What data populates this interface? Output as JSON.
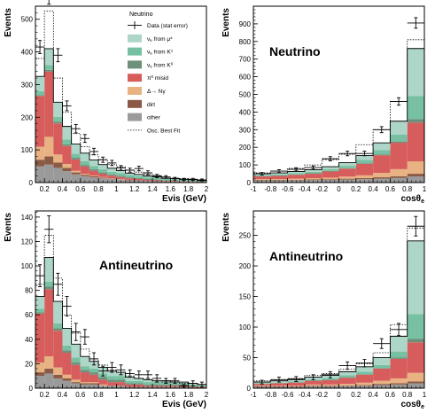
{
  "colors": {
    "nue_mu": "#aed6c8",
    "nue_k": "#77c0a2",
    "nue_k0": "#6e8f7a",
    "pi0": "#d75d5d",
    "delta": "#e8b282",
    "dirt": "#8a5a45",
    "other": "#9a9a9a"
  },
  "legend": {
    "title": "Neutrino",
    "entries": [
      {
        "key": "data",
        "label": "Data (stat error)"
      },
      {
        "key": "nue_mu",
        "label": "ν_e from μ^±"
      },
      {
        "key": "nue_k",
        "label": "ν_e from K^±"
      },
      {
        "key": "nue_k0",
        "label": "ν_e from K^0"
      },
      {
        "key": "pi0",
        "label": "π^0 misid"
      },
      {
        "key": "delta",
        "label": "Δ→ Nγ"
      },
      {
        "key": "dirt",
        "label": "dirt"
      },
      {
        "key": "other",
        "label": "other"
      },
      {
        "key": "fit",
        "label": "Osc. Best Fit"
      }
    ]
  },
  "chart_data": [
    {
      "type": "bar",
      "id": "nu_evis",
      "title": "",
      "label": "",
      "xlabel": "Evis (GeV)",
      "ylabel": "Events",
      "xlim": [
        0.1,
        2.0
      ],
      "ylim": [
        0,
        540
      ],
      "xticks": [
        0.2,
        0.4,
        0.6,
        0.8,
        1.0,
        1.2,
        1.4,
        1.6,
        1.8,
        2.0
      ],
      "xticklabels": [
        "0.2",
        "0.4",
        "0.6",
        "0.8",
        "1",
        "1.2",
        "1.4",
        "1.6",
        "1.8",
        "2"
      ],
      "yticks": [
        0,
        100,
        200,
        300,
        400,
        500
      ],
      "bin_edges": [
        0.1,
        0.2,
        0.3,
        0.4,
        0.5,
        0.6,
        0.7,
        0.8,
        0.9,
        1.0,
        1.1,
        1.2,
        1.3,
        1.4,
        1.5,
        1.6,
        1.7,
        1.8,
        1.9,
        2.0
      ],
      "stack": {
        "other": [
          50,
          55,
          45,
          35,
          25,
          20,
          16,
          13,
          11,
          9,
          7,
          6,
          5,
          4,
          3,
          3,
          2,
          2,
          1
        ],
        "dirt": [
          20,
          25,
          16,
          10,
          6,
          4,
          3,
          2,
          1,
          1,
          1,
          1,
          0,
          0,
          0,
          0,
          0,
          0,
          0
        ],
        "delta": [
          40,
          60,
          25,
          12,
          5,
          3,
          2,
          2,
          1,
          1,
          0,
          0,
          0,
          0,
          0,
          0,
          0,
          0,
          0
        ],
        "pi0": [
          155,
          200,
          95,
          55,
          35,
          22,
          15,
          10,
          8,
          6,
          5,
          4,
          3,
          3,
          2,
          2,
          1,
          1,
          1
        ],
        "nue_k0": [
          3,
          5,
          5,
          5,
          5,
          5,
          5,
          4,
          4,
          4,
          3,
          3,
          3,
          3,
          2,
          2,
          2,
          2,
          1
        ],
        "nue_k": [
          12,
          15,
          15,
          15,
          12,
          12,
          10,
          10,
          8,
          8,
          7,
          6,
          5,
          5,
          4,
          3,
          3,
          3,
          2
        ],
        "nue_mu": [
          45,
          50,
          45,
          40,
          30,
          24,
          18,
          14,
          11,
          8,
          6,
          5,
          4,
          3,
          2,
          2,
          2,
          1,
          1
        ]
      },
      "fit_total": [
        380,
        525,
        320,
        215,
        150,
        110,
        85,
        70,
        55,
        48,
        38,
        32,
        26,
        22,
        16,
        14,
        12,
        10,
        8
      ],
      "data": {
        "x": [
          0.15,
          0.25,
          0.35,
          0.45,
          0.55,
          0.65,
          0.75,
          0.85,
          0.95,
          1.05,
          1.15,
          1.25,
          1.35,
          1.45,
          1.55,
          1.65,
          1.75,
          1.85,
          1.95
        ],
        "y": [
          415,
          570,
          390,
          235,
          165,
          135,
          95,
          70,
          60,
          45,
          38,
          43,
          30,
          20,
          17,
          12,
          10,
          10,
          8
        ],
        "err": [
          20,
          24,
          20,
          15,
          13,
          12,
          10,
          8,
          8,
          7,
          6,
          7,
          6,
          5,
          4,
          4,
          3,
          3,
          3
        ]
      }
    },
    {
      "type": "bar",
      "id": "nu_cos",
      "title": "",
      "label": "Neutrino",
      "xlabel": "cosθ_e",
      "ylabel": "Events",
      "xlim": [
        -1,
        1
      ],
      "ylim": [
        0,
        1000
      ],
      "xticks": [
        -1,
        -0.8,
        -0.6,
        -0.4,
        -0.2,
        0,
        0.2,
        0.4,
        0.6,
        0.8,
        1
      ],
      "xticklabels": [
        "-1",
        "-0.8",
        "-0.6",
        "-0.4",
        "-0.2",
        "0",
        "0.2",
        "0.4",
        "0.6",
        "0.8",
        "1"
      ],
      "yticks": [
        0,
        100,
        200,
        300,
        400,
        500,
        600,
        700,
        800,
        900
      ],
      "bin_edges": [
        -1,
        -0.8,
        -0.6,
        -0.4,
        -0.2,
        0,
        0.2,
        0.4,
        0.6,
        0.8,
        1
      ],
      "stack": {
        "other": [
          12,
          12,
          13,
          14,
          15,
          17,
          19,
          22,
          26,
          35
        ],
        "dirt": [
          3,
          3,
          3,
          4,
          4,
          5,
          6,
          8,
          10,
          15
        ],
        "delta": [
          5,
          5,
          6,
          7,
          9,
          12,
          16,
          25,
          40,
          70
        ],
        "pi0": [
          15,
          18,
          22,
          25,
          35,
          45,
          65,
          100,
          150,
          220
        ],
        "nue_k0": [
          2,
          2,
          2,
          3,
          3,
          3,
          4,
          5,
          7,
          20
        ],
        "nue_k": [
          5,
          6,
          7,
          8,
          10,
          13,
          18,
          25,
          40,
          130
        ],
        "nue_mu": [
          8,
          9,
          10,
          12,
          14,
          18,
          25,
          40,
          75,
          270
        ]
      },
      "fit_total": [
        55,
        65,
        80,
        100,
        130,
        160,
        215,
        300,
        460,
        810
      ],
      "data": {
        "x": [
          -0.9,
          -0.7,
          -0.5,
          -0.3,
          -0.1,
          0.1,
          0.3,
          0.5,
          0.7,
          0.9
        ],
        "y": [
          50,
          65,
          75,
          85,
          135,
          165,
          165,
          300,
          460,
          905
        ],
        "err": [
          7,
          8,
          9,
          9,
          12,
          13,
          13,
          17,
          21,
          30
        ]
      }
    },
    {
      "type": "bar",
      "id": "nubar_evis",
      "title": "",
      "label": "Antineutrino",
      "xlabel": "Evis (GeV)",
      "ylabel": "Events",
      "xlim": [
        0.1,
        2.0
      ],
      "ylim": [
        0,
        145
      ],
      "xticks": [
        0.2,
        0.4,
        0.6,
        0.8,
        1.0,
        1.2,
        1.4,
        1.6,
        1.8,
        2.0
      ],
      "xticklabels": [
        "0.2",
        "0.4",
        "0.6",
        "0.8",
        "1",
        "1.2",
        "1.4",
        "1.6",
        "1.8",
        "2"
      ],
      "yticks": [
        0,
        20,
        40,
        60,
        80,
        100,
        120,
        140
      ],
      "bin_edges": [
        0.1,
        0.2,
        0.3,
        0.4,
        0.5,
        0.6,
        0.7,
        0.8,
        0.9,
        1.0,
        1.1,
        1.2,
        1.3,
        1.4,
        1.5,
        1.6,
        1.7,
        1.8,
        1.9,
        2.0
      ],
      "stack": {
        "other": [
          10,
          12,
          8,
          6,
          4,
          3,
          3,
          2,
          2,
          2,
          1,
          1,
          1,
          1,
          1,
          1,
          1,
          0,
          0
        ],
        "dirt": [
          3,
          4,
          3,
          2,
          1,
          1,
          1,
          0,
          0,
          0,
          0,
          0,
          0,
          0,
          0,
          0,
          0,
          0,
          0
        ],
        "delta": [
          8,
          10,
          6,
          3,
          2,
          1,
          1,
          1,
          0,
          0,
          0,
          0,
          0,
          0,
          0,
          0,
          0,
          0,
          0
        ],
        "pi0": [
          40,
          55,
          30,
          18,
          12,
          8,
          6,
          4,
          3,
          3,
          2,
          2,
          1,
          1,
          1,
          1,
          1,
          1,
          1
        ],
        "nue_k0": [
          1,
          2,
          2,
          2,
          2,
          2,
          2,
          2,
          2,
          2,
          1,
          1,
          1,
          1,
          1,
          1,
          1,
          1,
          0
        ],
        "nue_k": [
          3,
          4,
          4,
          4,
          4,
          3,
          3,
          3,
          3,
          3,
          2,
          2,
          2,
          2,
          2,
          1,
          1,
          1,
          1
        ],
        "nue_mu": [
          10,
          20,
          18,
          14,
          11,
          8,
          6,
          5,
          4,
          3,
          3,
          2,
          2,
          1,
          1,
          1,
          1,
          1,
          1
        ]
      },
      "fit_total": [
        85,
        125,
        90,
        60,
        45,
        32,
        24,
        19,
        15,
        13,
        10,
        8,
        7,
        6,
        5,
        5,
        4,
        4,
        3
      ],
      "data": {
        "x": [
          0.15,
          0.25,
          0.35,
          0.45,
          0.55,
          0.65,
          0.75,
          0.85,
          0.95,
          1.05,
          1.15,
          1.25,
          1.35,
          1.45,
          1.55,
          1.65,
          1.75,
          1.85,
          1.95
        ],
        "y": [
          92,
          130,
          85,
          67,
          46,
          42,
          24,
          14,
          17,
          15,
          12,
          11,
          11,
          8,
          6,
          6,
          2,
          4,
          3
        ],
        "err": [
          9,
          11,
          9,
          8,
          7,
          6,
          5,
          4,
          4,
          4,
          3,
          3,
          3,
          3,
          2,
          2,
          1,
          2,
          2
        ]
      }
    },
    {
      "type": "bar",
      "id": "nubar_cos",
      "title": "",
      "label": "Antineutrino",
      "xlabel": "cosθ_e",
      "ylabel": "Events",
      "xlim": [
        -1,
        1
      ],
      "ylim": [
        0,
        290
      ],
      "xticks": [
        -1,
        -0.8,
        -0.6,
        -0.4,
        -0.2,
        0,
        0.2,
        0.4,
        0.6,
        0.8,
        1
      ],
      "xticklabels": [
        "-1",
        "-0.8",
        "-0.6",
        "-0.4",
        "-0.2",
        "0",
        "0.2",
        "0.4",
        "0.6",
        "0.8",
        "1"
      ],
      "yticks": [
        0,
        50,
        100,
        150,
        200,
        250
      ],
      "bin_edges": [
        -1,
        -0.8,
        -0.6,
        -0.4,
        -0.2,
        0,
        0.2,
        0.4,
        0.6,
        0.8,
        1
      ],
      "stack": {
        "other": [
          2,
          2,
          2,
          3,
          3,
          3,
          4,
          5,
          6,
          8
        ],
        "dirt": [
          1,
          1,
          1,
          1,
          1,
          1,
          1,
          2,
          2,
          3
        ],
        "delta": [
          1,
          1,
          1,
          2,
          2,
          3,
          4,
          5,
          8,
          14
        ],
        "pi0": [
          3,
          4,
          5,
          6,
          7,
          10,
          13,
          20,
          32,
          50
        ],
        "nue_k0": [
          0,
          0,
          1,
          1,
          1,
          1,
          1,
          1,
          2,
          6
        ],
        "nue_k": [
          1,
          1,
          1,
          1,
          2,
          3,
          4,
          5,
          10,
          40
        ],
        "nue_mu": [
          2,
          3,
          3,
          4,
          5,
          6,
          8,
          12,
          25,
          120
        ]
      },
      "fit_total": [
        12,
        14,
        16,
        21,
        24,
        31,
        40,
        58,
        104,
        262
      ],
      "data": {
        "x": [
          -0.9,
          -0.7,
          -0.5,
          -0.3,
          -0.1,
          0.1,
          0.3,
          0.5,
          0.7,
          0.9
        ],
        "y": [
          10,
          14,
          15,
          18,
          22,
          37,
          41,
          73,
          96,
          265
        ],
        "err": [
          3,
          4,
          4,
          4,
          5,
          6,
          6,
          8,
          10,
          16
        ]
      }
    }
  ]
}
